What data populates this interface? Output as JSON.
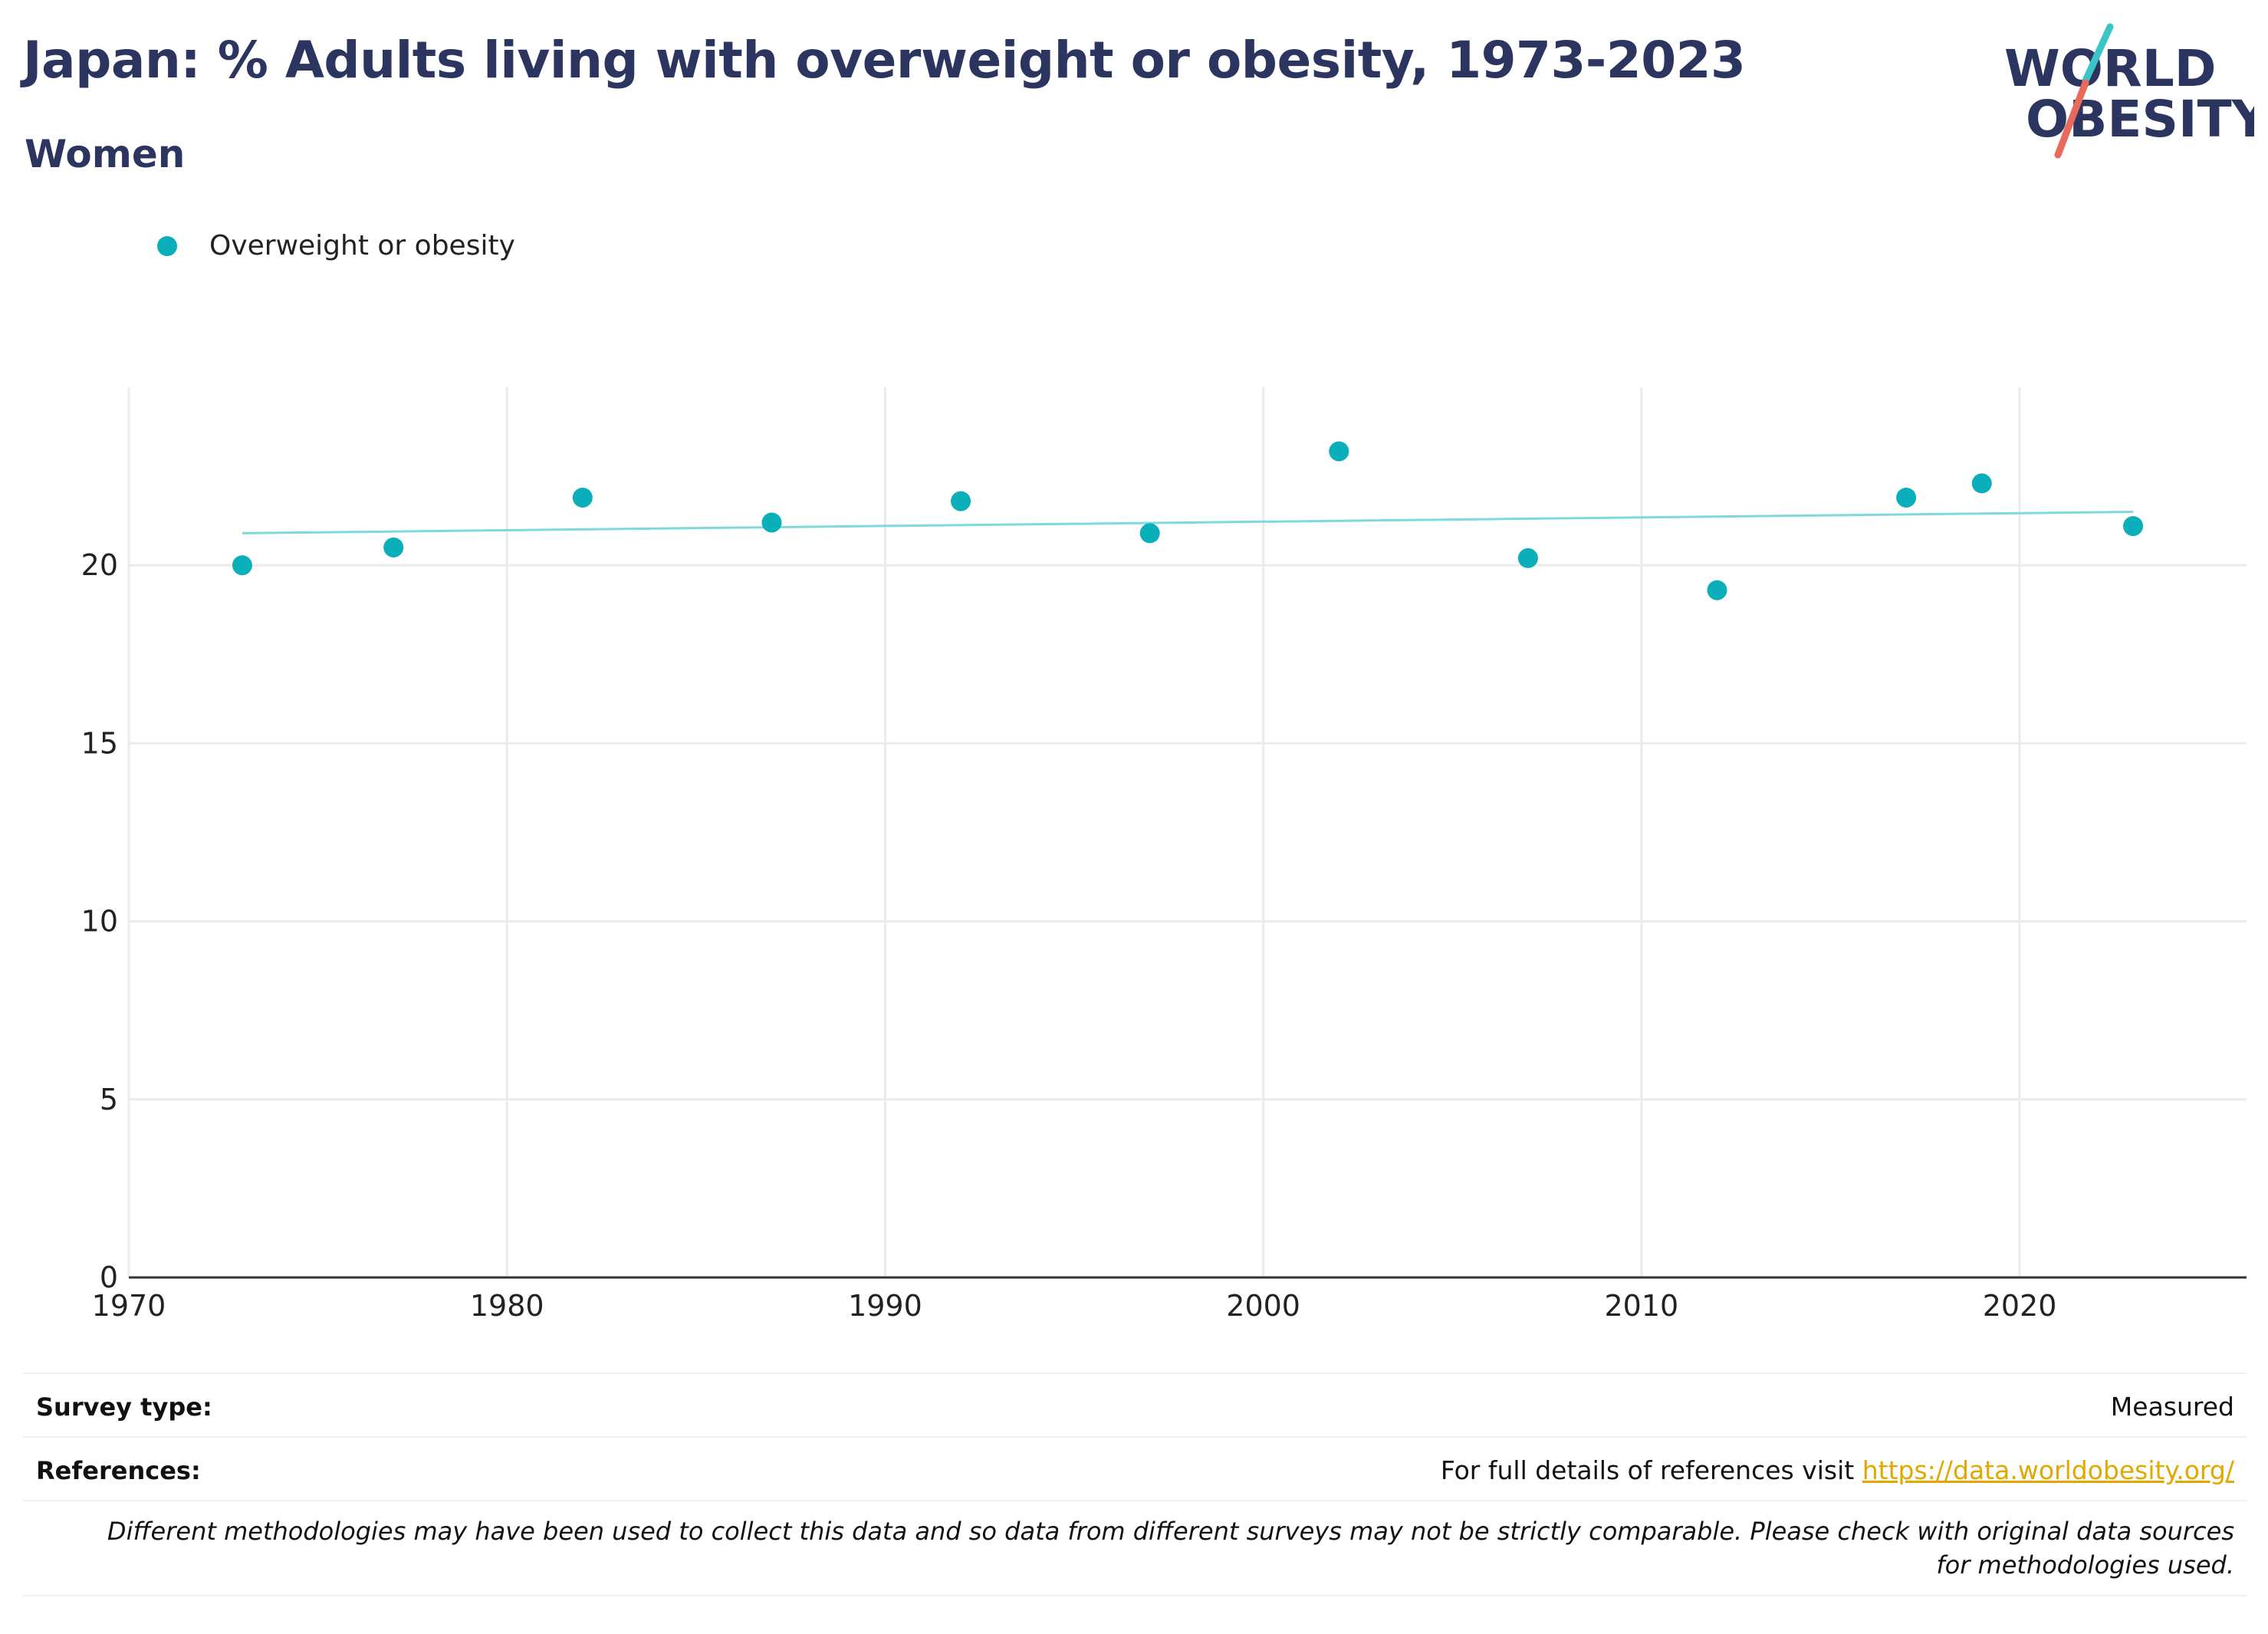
{
  "header": {
    "title": "Japan: % Adults living with overweight or obesity, 1973-2023",
    "subtitle": "Women"
  },
  "logo": {
    "line1": "WORLD",
    "line2": "OBESITY"
  },
  "colors": {
    "series": "#0aafba",
    "trend": "#7fd9dc",
    "title": "#2b3560",
    "logo_teal": "#3cc5c8",
    "logo_red": "#e86a5c",
    "link": "#e0a800",
    "grid": "#ebebeb"
  },
  "chart_data": {
    "type": "scatter",
    "title": "Japan: % Adults living with overweight or obesity, 1973-2023",
    "subtitle": "Women",
    "xlabel": "",
    "ylabel": "",
    "xlim": [
      1970,
      2026
    ],
    "ylim": [
      0,
      25
    ],
    "x_ticks": [
      1970,
      1980,
      1990,
      2000,
      2010,
      2020
    ],
    "y_ticks": [
      0,
      5,
      10,
      15,
      20
    ],
    "grid": true,
    "legend_position": "top-left",
    "series": [
      {
        "name": "Overweight or obesity",
        "x": [
          1973,
          1977,
          1982,
          1987,
          1992,
          1997,
          2002,
          2007,
          2012,
          2017,
          2019,
          2023
        ],
        "y": [
          20.0,
          20.5,
          21.9,
          21.2,
          21.8,
          20.9,
          23.2,
          20.2,
          19.3,
          21.9,
          22.3,
          21.1
        ]
      }
    ],
    "trendline": {
      "x": [
        1973,
        2023
      ],
      "y": [
        20.9,
        21.5
      ]
    }
  },
  "footer": {
    "survey_type_label": "Survey type:",
    "survey_type_value": "Measured",
    "references_label": "References:",
    "references_text": "For full details of references visit",
    "references_link": "https://data.worldobesity.org/",
    "disclaimer": "Different methodologies may have been used to collect this data and so data from different surveys may not be strictly comparable. Please check with original data sources for methodologies used."
  }
}
